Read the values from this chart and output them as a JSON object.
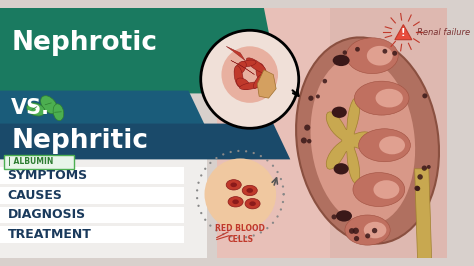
{
  "bg_main_color": "#d8d0cc",
  "bg_right_color": "#e8c8c0",
  "bg_far_right_color": "#d8c0bc",
  "banner1_color": "#1a7a60",
  "banner2_color": "#1a5c7a",
  "banner3_color": "#1a4a6a",
  "title_line1": "Nephrotic",
  "title_vs": "VS.",
  "title_line2": "Nephritic",
  "albumin_text": "ALBUMIN",
  "symptoms_items": [
    "SYMPTOMS",
    "CAUSES",
    "DIAGNOSIS",
    "TREATMENT"
  ],
  "symptoms_text_color": "#1a3a5c",
  "rbc_label": "RED BLOOD\nCELLS",
  "rbc_color": "#c0392b",
  "renal_failure_text": "Renal failure",
  "renal_failure_color": "#c0392b",
  "kidney_outer_color": "#b07060",
  "kidney_inner_color": "#d89080",
  "kidney_pelvis_color": "#c8a850",
  "kidney_lobe_color": "#c07060",
  "kidney_dark_color": "#4a2020",
  "glom_bg_color": "#f0e0d8",
  "glom_red_color": "#c0392b",
  "glom_tube_color": "#c8a850",
  "leaf_color": "#4caf50"
}
